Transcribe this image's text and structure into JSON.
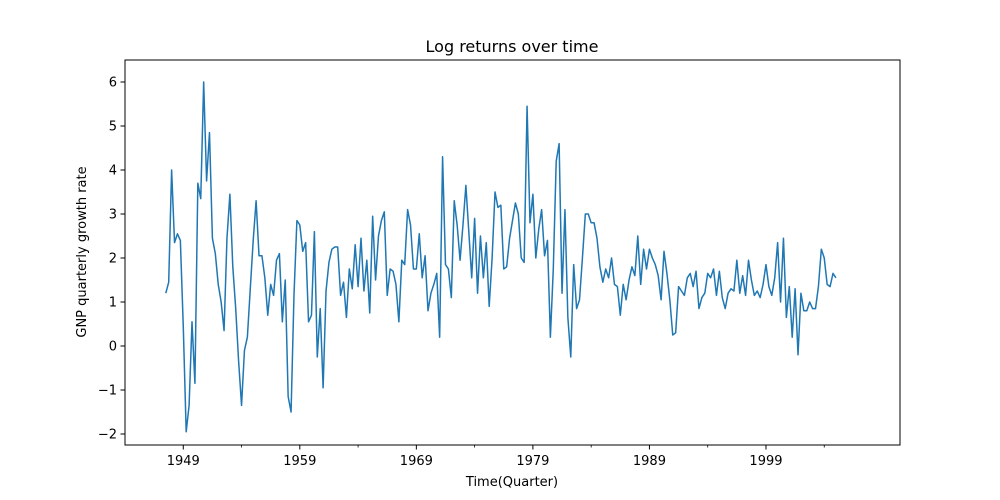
{
  "chart_data": {
    "type": "line",
    "title": "Log returns over time",
    "xlabel": "Time(Quarter)",
    "ylabel": "GNP quarterly growth rate",
    "xlim": [
      1944.0,
      2010.5
    ],
    "ylim": [
      -2.25,
      6.5
    ],
    "x_ticks": [
      1949,
      1959,
      1969,
      1979,
      1989,
      1999
    ],
    "x_minor_ticks": [
      1954,
      1964,
      1974,
      1984,
      1994,
      2004
    ],
    "y_ticks": [
      -2,
      -1,
      0,
      1,
      2,
      3,
      4,
      5,
      6
    ],
    "grid": false,
    "legend": "none",
    "color": "#1f77b4",
    "series": [
      {
        "x_start": 1947.5,
        "x_step": 0.25,
        "values": [
          1.2,
          1.45,
          4.0,
          2.35,
          2.55,
          2.4,
          0.45,
          -1.95,
          -1.35,
          0.55,
          -0.85,
          3.7,
          3.35,
          6.0,
          3.75,
          4.85,
          2.45,
          2.1,
          1.4,
          1.0,
          0.35,
          2.45,
          3.45,
          1.8,
          0.85,
          -0.35,
          -1.35,
          -0.1,
          0.2,
          1.3,
          2.4,
          3.3,
          2.05,
          2.05,
          1.55,
          0.7,
          1.4,
          1.15,
          1.95,
          2.1,
          0.55,
          1.5,
          -1.15,
          -1.5,
          1.15,
          2.85,
          2.75,
          2.15,
          2.35,
          0.55,
          0.7,
          2.6,
          -0.25,
          0.85,
          -0.95,
          1.25,
          1.9,
          2.2,
          2.25,
          2.25,
          1.15,
          1.45,
          0.65,
          1.75,
          1.3,
          2.3,
          1.35,
          2.45,
          1.25,
          1.95,
          0.75,
          2.95,
          1.5,
          2.5,
          2.85,
          3.05,
          1.15,
          1.75,
          1.7,
          1.4,
          0.55,
          1.95,
          1.85,
          3.1,
          2.75,
          1.75,
          1.75,
          2.55,
          1.55,
          2.05,
          0.8,
          1.2,
          1.4,
          1.65,
          0.2,
          4.3,
          1.85,
          1.75,
          1.1,
          3.3,
          2.75,
          1.95,
          2.75,
          3.65,
          2.6,
          1.55,
          2.9,
          1.2,
          2.5,
          1.55,
          2.35,
          0.9,
          2.0,
          3.5,
          3.15,
          3.2,
          1.75,
          1.8,
          2.45,
          2.85,
          3.25,
          3.0,
          2.0,
          1.9,
          5.45,
          2.8,
          3.45,
          2.0,
          2.65,
          3.1,
          2.05,
          2.4,
          0.2,
          1.75,
          4.2,
          4.6,
          1.2,
          3.1,
          0.65,
          -0.25,
          1.85,
          0.85,
          1.05,
          2.0,
          3.0,
          3.0,
          2.8,
          2.8,
          2.45,
          1.8,
          1.45,
          1.75,
          1.55,
          2.0,
          1.4,
          1.35,
          0.7,
          1.4,
          1.05,
          1.5,
          1.8,
          1.6,
          2.5,
          1.4,
          2.2,
          1.75,
          2.2,
          2.0,
          1.85,
          1.6,
          1.05,
          2.15,
          1.65,
          1.05,
          0.25,
          0.3,
          1.35,
          1.25,
          1.15,
          1.55,
          1.65,
          1.35,
          1.7,
          0.85,
          1.1,
          1.2,
          1.65,
          1.55,
          1.75,
          1.15,
          1.7,
          1.1,
          0.85,
          1.2,
          1.3,
          1.25,
          1.95,
          1.2,
          1.6,
          1.15,
          1.95,
          1.5,
          1.15,
          1.25,
          1.1,
          1.4,
          1.85,
          1.35,
          1.15,
          1.55,
          2.35,
          1.0,
          2.45,
          0.65,
          1.35,
          0.2,
          1.3,
          -0.2,
          1.2,
          0.8,
          0.8,
          1.0,
          0.85,
          0.85,
          1.35,
          2.2,
          2.0,
          1.4,
          1.35,
          1.65,
          1.55
        ]
      }
    ]
  }
}
